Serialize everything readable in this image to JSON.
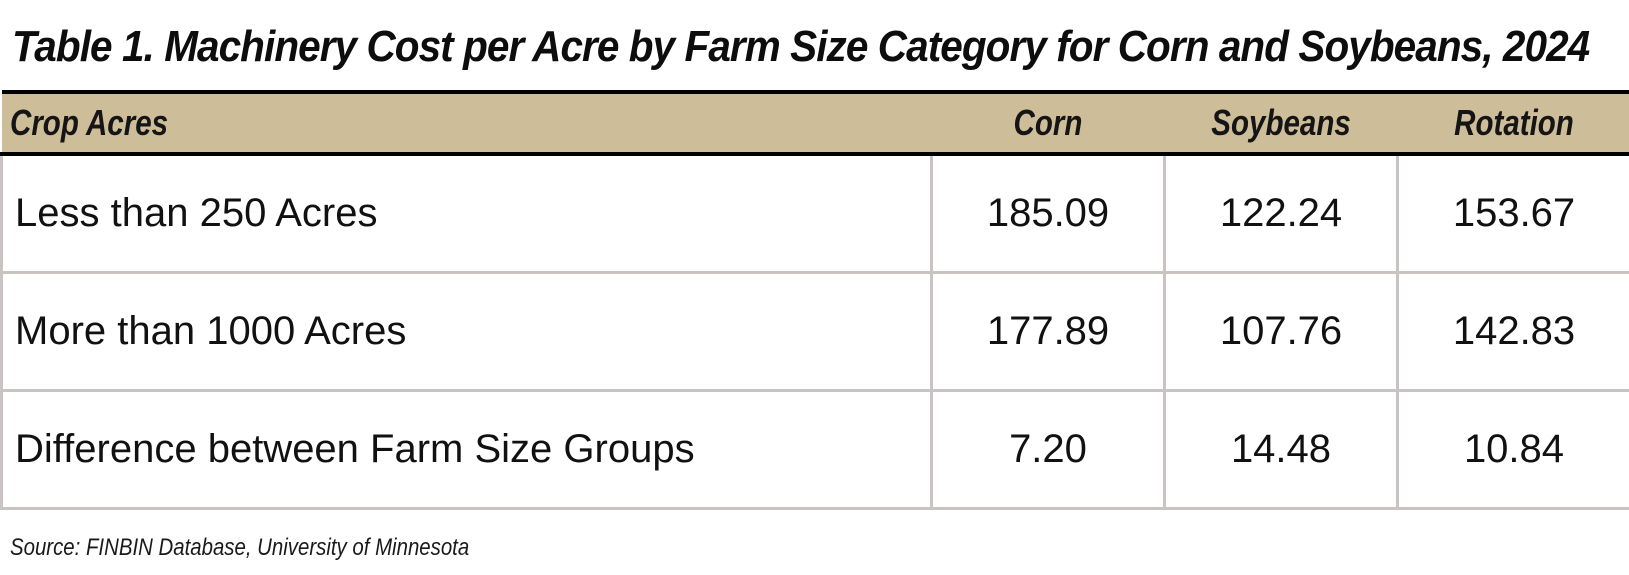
{
  "title": "Table 1.  Machinery Cost per Acre by Farm Size Category for Corn and Soybeans, 2024",
  "table": {
    "headers": {
      "label": "Crop Acres",
      "corn": "Corn",
      "soybeans": "Soybeans",
      "rotation": "Rotation"
    },
    "rows": [
      {
        "label": "Less than 250 Acres",
        "corn": "185.09",
        "soybeans": "122.24",
        "rotation": "153.67"
      },
      {
        "label": "More than 1000 Acres",
        "corn": "177.89",
        "soybeans": "107.76",
        "rotation": "142.83"
      },
      {
        "label": "Difference between Farm Size Groups",
        "corn": "7.20",
        "soybeans": "14.48",
        "rotation": "10.84"
      }
    ]
  },
  "source": "Source:  FINBIN Database, University of Minnesota",
  "colors": {
    "header_background": "#cdbd98",
    "grid_lines": "#c9c4c2",
    "rule_lines": "#000000"
  }
}
